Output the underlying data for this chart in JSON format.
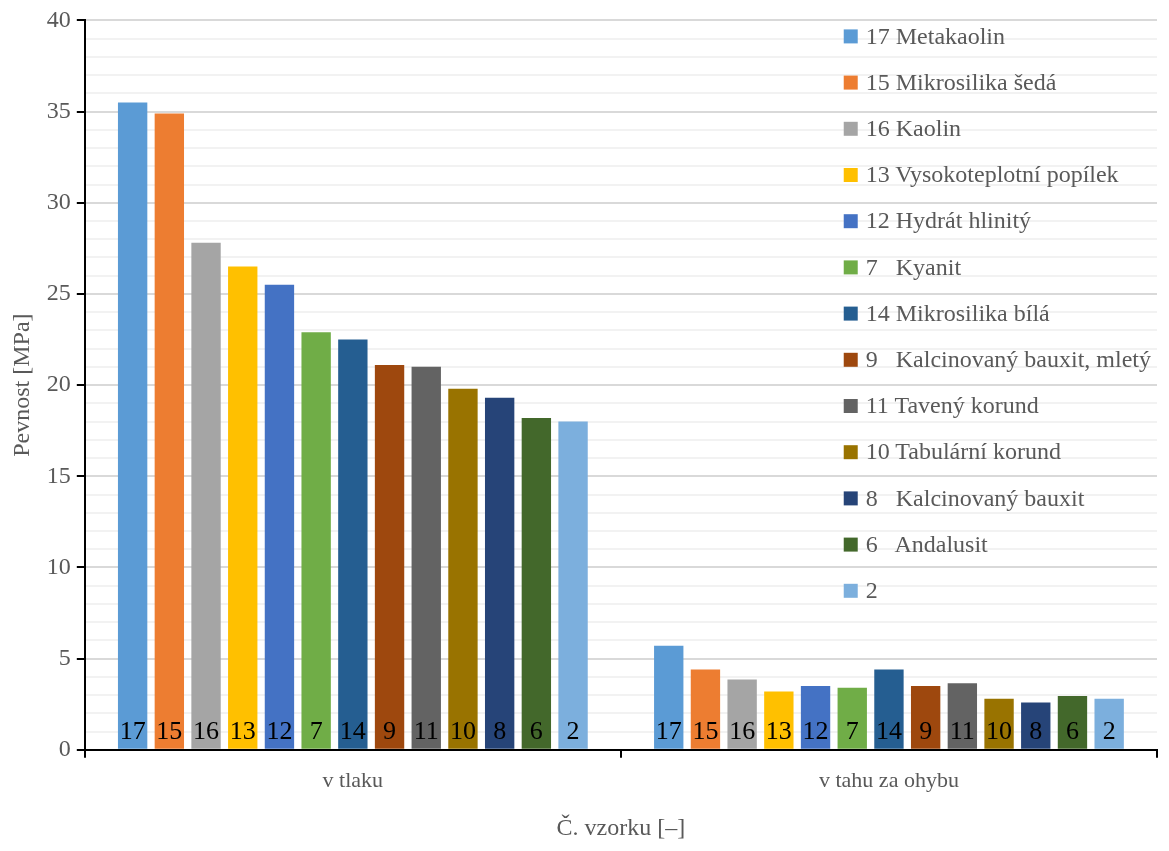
{
  "chart_data": {
    "type": "bar",
    "ylabel": "Pevnost [MPa]",
    "xlabel": "Č. vzorku [–]",
    "categories": [
      "v tlaku",
      "v tahu za ohybu"
    ],
    "series": [
      {
        "name": "17 Metakaolin",
        "color": "#5b9bd5",
        "values": [
          35.5,
          5.7
        ]
      },
      {
        "name": "15 Mikrosilika šedá",
        "color": "#ed7d31",
        "values": [
          34.9,
          4.4
        ]
      },
      {
        "name": "16 Kaolin",
        "color": "#a5a5a5",
        "values": [
          27.8,
          3.85
        ]
      },
      {
        "name": "13 Vysokoteplotní popílek",
        "color": "#ffc000",
        "values": [
          26.5,
          3.2
        ]
      },
      {
        "name": "12 Hydrát hlinitý",
        "color": "#4472c4",
        "values": [
          25.5,
          3.5
        ]
      },
      {
        "name": "7   Kyanit",
        "color": "#70ad47",
        "values": [
          22.9,
          3.4
        ]
      },
      {
        "name": "14 Mikrosilika bílá",
        "color": "#255e91",
        "values": [
          22.5,
          4.4
        ]
      },
      {
        "name": "9   Kalcinovaný bauxit, mletý",
        "color": "#9e480e",
        "values": [
          21.1,
          3.5
        ]
      },
      {
        "name": "11 Tavený korund",
        "color": "#636363",
        "values": [
          21.0,
          3.65
        ]
      },
      {
        "name": "10 Tabulární korund",
        "color": "#997300",
        "values": [
          19.8,
          2.8
        ]
      },
      {
        "name": "8   Kalcinovaný bauxit",
        "color": "#264478",
        "values": [
          19.3,
          2.6
        ]
      },
      {
        "name": "6   Andalusit",
        "color": "#43682b",
        "values": [
          18.2,
          2.95
        ]
      },
      {
        "name": "2",
        "color": "#7cafdd",
        "values": [
          18.0,
          2.8
        ]
      }
    ],
    "annotations": [
      "17",
      "17",
      "15",
      "15",
      "16",
      "16",
      "13",
      "13",
      "12",
      "12",
      "7",
      "7",
      "14",
      "14",
      "9",
      "9",
      "11",
      "11",
      "10",
      "10",
      "8",
      "8",
      "6",
      "6",
      "2",
      "2"
    ],
    "ylim": [
      0,
      40
    ],
    "yticks": [
      0,
      {
        "value": 1,
        "label": null
      },
      {
        "value": 2,
        "label": null
      },
      {
        "value": 3,
        "label": null
      },
      {
        "value": 4,
        "label": null
      },
      5,
      {
        "value": 6,
        "label": null
      },
      {
        "value": 7,
        "label": null
      },
      {
        "value": 8,
        "label": null
      },
      {
        "value": 9,
        "label": null
      },
      10,
      {
        "value": 11,
        "label": null
      },
      {
        "value": 12,
        "label": null
      },
      {
        "value": 13,
        "label": null
      },
      {
        "value": 14,
        "label": null
      },
      15,
      {
        "value": 16,
        "label": null
      },
      {
        "value": 17,
        "label": null
      },
      {
        "value": 18,
        "label": null
      },
      {
        "value": 19,
        "label": null
      },
      20,
      {
        "value": 21,
        "label": null
      },
      {
        "value": 22,
        "label": null
      },
      {
        "value": 23,
        "label": null
      },
      {
        "value": 24,
        "label": null
      },
      25,
      {
        "value": 26,
        "label": null
      },
      {
        "value": 27,
        "label": null
      },
      {
        "value": 28,
        "label": null
      },
      {
        "value": 29,
        "label": null
      },
      30,
      {
        "value": 31,
        "label": null
      },
      {
        "value": 32,
        "label": null
      },
      {
        "value": 33,
        "label": null
      },
      {
        "value": 34,
        "label": null
      },
      35,
      {
        "value": 36,
        "label": null
      },
      {
        "value": 37,
        "label": null
      },
      {
        "value": 38,
        "label": null
      },
      {
        "value": 39,
        "label": null
      },
      40
    ],
    "grid": true,
    "legend": "top right"
  }
}
